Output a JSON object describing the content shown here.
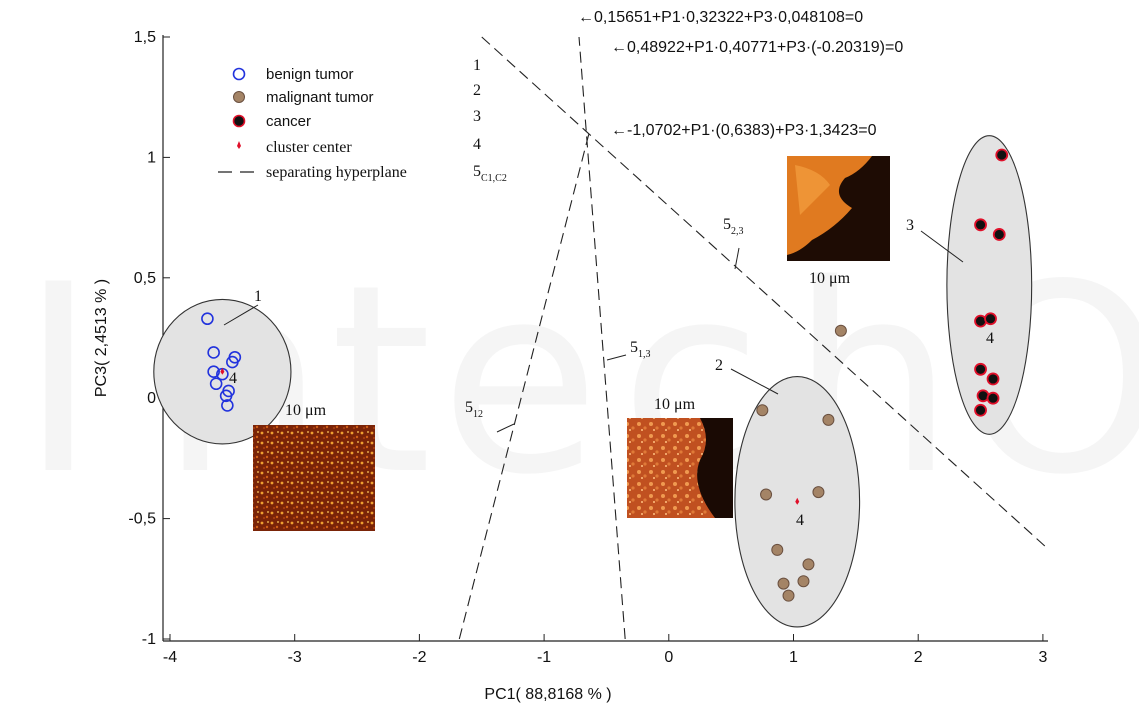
{
  "chart_data": {
    "type": "scatter",
    "xlabel": "PC1( 88,8168 % )",
    "ylabel": "PC3( 2,4513 % )",
    "xlim": [
      -4.05,
      3.05
    ],
    "ylim": [
      -1.0,
      1.5
    ],
    "x_ticks": [
      -4,
      -3,
      -2,
      -1,
      0,
      1,
      2,
      3
    ],
    "x_tick_labels": [
      "-4",
      "-3",
      "-2",
      "-1",
      "0",
      "1",
      "2",
      "3"
    ],
    "y_ticks": [
      -1,
      -0.5,
      0,
      0.5,
      1,
      1.5
    ],
    "y_tick_labels": [
      "-1",
      "-0,5",
      "0",
      "0,5",
      "1",
      "1,5"
    ],
    "grid": false,
    "series": [
      {
        "name": "benign tumor",
        "legend_num": "1",
        "marker": "open-circle",
        "color": "#2233dd",
        "points": [
          [
            -3.7,
            0.33
          ],
          [
            -3.65,
            0.19
          ],
          [
            -3.65,
            0.11
          ],
          [
            -3.63,
            0.06
          ],
          [
            -3.58,
            0.1
          ],
          [
            -3.48,
            0.17
          ],
          [
            -3.5,
            0.15
          ],
          [
            -3.53,
            0.03
          ],
          [
            -3.55,
            0.01
          ],
          [
            -3.54,
            -0.03
          ]
        ]
      },
      {
        "name": "malignant tumor",
        "legend_num": "2",
        "marker": "filled-circle",
        "color": "#a48466",
        "points": [
          [
            0.75,
            -0.05
          ],
          [
            1.28,
            -0.09
          ],
          [
            0.78,
            -0.4
          ],
          [
            1.2,
            -0.39
          ],
          [
            0.87,
            -0.63
          ],
          [
            1.12,
            -0.69
          ],
          [
            0.92,
            -0.77
          ],
          [
            1.08,
            -0.76
          ],
          [
            0.96,
            -0.82
          ],
          [
            1.38,
            0.28
          ]
        ]
      },
      {
        "name": "cancer",
        "legend_num": "3",
        "marker": "filled-circle-outlined",
        "color": "#111111",
        "outline": "#e0102a",
        "points": [
          [
            2.67,
            1.01
          ],
          [
            2.5,
            0.72
          ],
          [
            2.65,
            0.68
          ],
          [
            2.5,
            0.32
          ],
          [
            2.58,
            0.33
          ],
          [
            2.5,
            0.12
          ],
          [
            2.6,
            0.08
          ],
          [
            2.52,
            0.01
          ],
          [
            2.6,
            0.0
          ],
          [
            2.5,
            -0.05
          ]
        ]
      },
      {
        "name": "cluster center",
        "legend_num": "4",
        "marker": "small-red-dot",
        "color": "#e0102a",
        "points": [
          [
            -3.58,
            0.11
          ],
          [
            1.03,
            -0.43
          ]
        ]
      }
    ],
    "clusters": [
      {
        "label": "1",
        "center_label": "4",
        "cx": -3.58,
        "cy": 0.11,
        "rx": 0.55,
        "ry": 0.3
      },
      {
        "label": "2",
        "center_label": "4",
        "cx": 1.03,
        "cy": -0.43,
        "rx": 0.5,
        "ry": 0.52
      },
      {
        "label": "3",
        "center_label": "4",
        "cx": 2.57,
        "cy": 0.47,
        "rx": 0.34,
        "ry": 0.62
      }
    ],
    "legend_line_entry": {
      "name": "separating hyperplane",
      "num": "5",
      "num_sub": "C1,C2"
    },
    "hyperplanes": [
      {
        "label": "5",
        "label_sub": "12",
        "x1": -1.68,
        "y1": -1.0,
        "x2": -0.64,
        "y2": 1.1,
        "equation": "←-1,0702+P1·(0,6383)+P3·1,3423=0"
      },
      {
        "label": "5",
        "label_sub": "1,3",
        "x1": -0.35,
        "y1": -1.0,
        "x2": -0.72,
        "y2": 1.5,
        "equation": "←0,15651+P1·0,32322+P3·0,048108=0"
      },
      {
        "label": "5",
        "label_sub": "2,3",
        "x1": -1.5,
        "y1": 1.5,
        "x2": 3.05,
        "y2": -0.63,
        "equation": "←0,48922+P1·0,40771+P3·(-0.20319)=0"
      }
    ],
    "image_captions": [
      "10 μm",
      "10 μm",
      "10 μm"
    ]
  }
}
